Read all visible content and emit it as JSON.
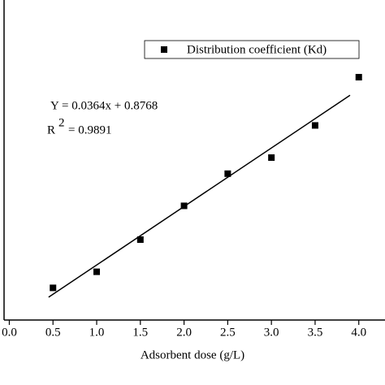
{
  "chart_data": {
    "type": "scatter",
    "x_label": "Adsorbent dose (g/L)",
    "series": [
      {
        "name": "Distribution coefficient (Kd)",
        "color": "#000000",
        "x": [
          0.5,
          1.0,
          1.5,
          2.0,
          2.5,
          3.0,
          3.5,
          4.0
        ],
        "values": [
          0.899,
          0.909,
          0.929,
          0.95,
          0.97,
          0.98,
          1.0,
          1.03
        ]
      }
    ],
    "fit": {
      "slope": 0.0364,
      "intercept": 0.8768,
      "x": [
        0.45,
        3.9
      ],
      "color": "#000000"
    },
    "annotations": [
      "Y = 0.0364x + 0.8768",
      "R",
      "2",
      "= 0.9891"
    ],
    "xlim": [
      -0.06,
      4.3
    ],
    "ylim": [
      0.879,
      1.078
    ],
    "xticks": [
      {
        "value": 0,
        "label": "0.0"
      },
      0.5,
      {
        "value": 1,
        "label": "1.0"
      },
      1.5,
      {
        "value": 2,
        "label": "2.0"
      },
      2.5,
      {
        "value": 3,
        "label": "3.0"
      },
      3.5,
      {
        "value": 4,
        "label": "4.0"
      }
    ],
    "legend": "top-right"
  }
}
